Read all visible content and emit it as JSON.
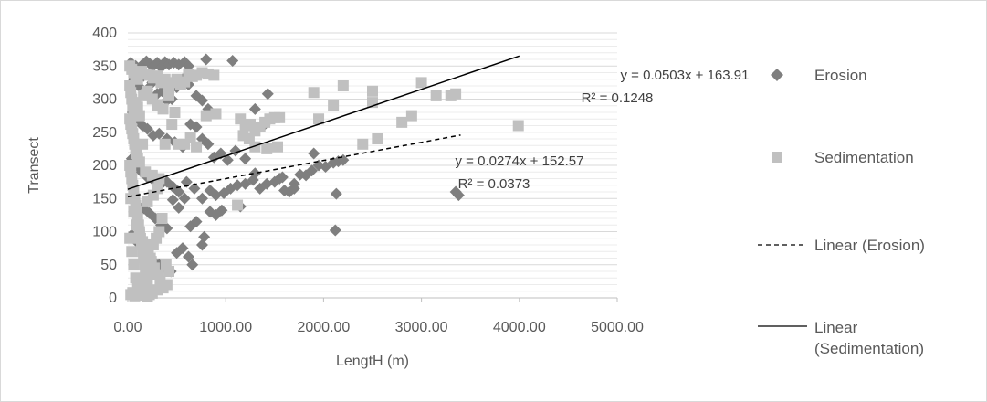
{
  "chart_data": {
    "type": "scatter",
    "title": "",
    "xlabel": "LengtH (m)",
    "ylabel": "Transect",
    "xlim": [
      0,
      5000
    ],
    "ylim": [
      0,
      400
    ],
    "x_ticks": [
      "0.00",
      "1000.00",
      "2000.00",
      "3000.00",
      "4000.00",
      "5000.00"
    ],
    "y_ticks": [
      "0",
      "50",
      "100",
      "150",
      "200",
      "250",
      "300",
      "350",
      "400"
    ],
    "grid": "horizontal",
    "legend_position": "right",
    "series": [
      {
        "name": "Erosion",
        "marker": "diamond",
        "color": "#7f7f7f",
        "points": [
          [
            30,
            355
          ],
          [
            80,
            350
          ],
          [
            120,
            345
          ],
          [
            150,
            352
          ],
          [
            190,
            357
          ],
          [
            220,
            354
          ],
          [
            260,
            350
          ],
          [
            300,
            355
          ],
          [
            340,
            348
          ],
          [
            380,
            356
          ],
          [
            420,
            352
          ],
          [
            470,
            355
          ],
          [
            520,
            352
          ],
          [
            580,
            356
          ],
          [
            620,
            350
          ],
          [
            800,
            360
          ],
          [
            1070,
            358
          ],
          [
            60,
            330
          ],
          [
            110,
            320
          ],
          [
            160,
            335
          ],
          [
            200,
            315
          ],
          [
            250,
            325
          ],
          [
            300,
            308
          ],
          [
            350,
            312
          ],
          [
            400,
            298
          ],
          [
            450,
            300
          ],
          [
            500,
            318
          ],
          [
            560,
            330
          ],
          [
            620,
            322
          ],
          [
            700,
            305
          ],
          [
            760,
            298
          ],
          [
            820,
            285
          ],
          [
            1430,
            308
          ],
          [
            50,
            280
          ],
          [
            100,
            270
          ],
          [
            150,
            260
          ],
          [
            200,
            255
          ],
          [
            260,
            245
          ],
          [
            320,
            248
          ],
          [
            400,
            240
          ],
          [
            480,
            235
          ],
          [
            560,
            228
          ],
          [
            640,
            262
          ],
          [
            700,
            258
          ],
          [
            760,
            240
          ],
          [
            820,
            232
          ],
          [
            880,
            212
          ],
          [
            950,
            218
          ],
          [
            1020,
            208
          ],
          [
            1100,
            222
          ],
          [
            1200,
            210
          ],
          [
            1300,
            285
          ],
          [
            1400,
            262
          ],
          [
            40,
            210
          ],
          [
            90,
            200
          ],
          [
            140,
            190
          ],
          [
            200,
            182
          ],
          [
            260,
            178
          ],
          [
            330,
            170
          ],
          [
            400,
            175
          ],
          [
            460,
            168
          ],
          [
            520,
            160
          ],
          [
            600,
            175
          ],
          [
            680,
            165
          ],
          [
            760,
            150
          ],
          [
            840,
            162
          ],
          [
            900,
            155
          ],
          [
            980,
            158
          ],
          [
            1050,
            165
          ],
          [
            1120,
            170
          ],
          [
            1200,
            172
          ],
          [
            1280,
            178
          ],
          [
            1350,
            165
          ],
          [
            1420,
            172
          ],
          [
            1500,
            175
          ],
          [
            1580,
            182
          ],
          [
            1650,
            160
          ],
          [
            1700,
            172
          ],
          [
            1760,
            186
          ],
          [
            1820,
            185
          ],
          [
            1880,
            192
          ],
          [
            1950,
            200
          ],
          [
            2020,
            198
          ],
          [
            2100,
            204
          ],
          [
            2150,
            206
          ],
          [
            2200,
            208
          ],
          [
            1900,
            218
          ],
          [
            1550,
            180
          ],
          [
            1600,
            162
          ],
          [
            50,
            150
          ],
          [
            100,
            140
          ],
          [
            160,
            135
          ],
          [
            220,
            128
          ],
          [
            280,
            120
          ],
          [
            340,
            110
          ],
          [
            400,
            105
          ],
          [
            460,
            148
          ],
          [
            520,
            136
          ],
          [
            580,
            150
          ],
          [
            640,
            108
          ],
          [
            700,
            115
          ],
          [
            780,
            92
          ],
          [
            840,
            130
          ],
          [
            900,
            125
          ],
          [
            960,
            132
          ],
          [
            1150,
            138
          ],
          [
            1300,
            188
          ],
          [
            1700,
            165
          ],
          [
            2130,
            157
          ],
          [
            3350,
            160
          ],
          [
            3380,
            155
          ],
          [
            2120,
            102
          ],
          [
            40,
            95
          ],
          [
            90,
            85
          ],
          [
            140,
            75
          ],
          [
            200,
            65
          ],
          [
            260,
            55
          ],
          [
            320,
            50
          ],
          [
            380,
            45
          ],
          [
            440,
            40
          ],
          [
            500,
            68
          ],
          [
            560,
            75
          ],
          [
            620,
            62
          ],
          [
            660,
            50
          ],
          [
            760,
            80
          ]
        ]
      },
      {
        "name": "Sedimentation",
        "marker": "square",
        "color": "#c0c0c0",
        "points": [
          [
            20,
            350
          ],
          [
            40,
            345
          ],
          [
            60,
            340
          ],
          [
            80,
            335
          ],
          [
            100,
            330
          ],
          [
            140,
            342
          ],
          [
            180,
            338
          ],
          [
            220,
            336
          ],
          [
            260,
            332
          ],
          [
            300,
            335
          ],
          [
            340,
            325
          ],
          [
            380,
            330
          ],
          [
            420,
            320
          ],
          [
            460,
            325
          ],
          [
            500,
            330
          ],
          [
            540,
            322
          ],
          [
            580,
            326
          ],
          [
            620,
            338
          ],
          [
            660,
            334
          ],
          [
            700,
            336
          ],
          [
            760,
            340
          ],
          [
            820,
            338
          ],
          [
            880,
            336
          ],
          [
            20,
            320
          ],
          [
            30,
            310
          ],
          [
            40,
            300
          ],
          [
            50,
            290
          ],
          [
            60,
            280
          ],
          [
            80,
            295
          ],
          [
            100,
            288
          ],
          [
            120,
            275
          ],
          [
            160,
            305
          ],
          [
            200,
            312
          ],
          [
            250,
            300
          ],
          [
            300,
            290
          ],
          [
            360,
            285
          ],
          [
            420,
            305
          ],
          [
            480,
            280
          ],
          [
            20,
            270
          ],
          [
            30,
            262
          ],
          [
            40,
            255
          ],
          [
            50,
            248
          ],
          [
            60,
            240
          ],
          [
            70,
            232
          ],
          [
            80,
            225
          ],
          [
            90,
            218
          ],
          [
            100,
            210
          ],
          [
            120,
            205
          ],
          [
            150,
            232
          ],
          [
            180,
            190
          ],
          [
            250,
            185
          ],
          [
            320,
            180
          ],
          [
            380,
            232
          ],
          [
            450,
            262
          ],
          [
            520,
            232
          ],
          [
            580,
            232
          ],
          [
            640,
            242
          ],
          [
            700,
            228
          ],
          [
            800,
            275
          ],
          [
            900,
            278
          ],
          [
            1150,
            270
          ],
          [
            1200,
            260
          ],
          [
            1250,
            262
          ],
          [
            1300,
            252
          ],
          [
            1350,
            258
          ],
          [
            1400,
            265
          ],
          [
            1450,
            270
          ],
          [
            1500,
            272
          ],
          [
            1550,
            272
          ],
          [
            1180,
            245
          ],
          [
            1240,
            240
          ],
          [
            1300,
            228
          ],
          [
            1420,
            225
          ],
          [
            1530,
            228
          ],
          [
            1900,
            310
          ],
          [
            1950,
            270
          ],
          [
            2100,
            290
          ],
          [
            2200,
            320
          ],
          [
            2400,
            232
          ],
          [
            2500,
            295
          ],
          [
            2500,
            312
          ],
          [
            2550,
            240
          ],
          [
            2800,
            265
          ],
          [
            2900,
            275
          ],
          [
            3000,
            325
          ],
          [
            3150,
            305
          ],
          [
            3300,
            305
          ],
          [
            3350,
            308
          ],
          [
            3990,
            260
          ],
          [
            20,
            200
          ],
          [
            30,
            190
          ],
          [
            40,
            180
          ],
          [
            50,
            170
          ],
          [
            60,
            160
          ],
          [
            70,
            150
          ],
          [
            80,
            140
          ],
          [
            90,
            130
          ],
          [
            100,
            120
          ],
          [
            110,
            110
          ],
          [
            120,
            100
          ],
          [
            130,
            90
          ],
          [
            140,
            80
          ],
          [
            150,
            70
          ],
          [
            160,
            60
          ],
          [
            170,
            50
          ],
          [
            180,
            40
          ],
          [
            190,
            30
          ],
          [
            200,
            20
          ],
          [
            210,
            10
          ],
          [
            220,
            5
          ],
          [
            30,
            150
          ],
          [
            60,
            130
          ],
          [
            90,
            110
          ],
          [
            120,
            95
          ],
          [
            150,
            85
          ],
          [
            180,
            75
          ],
          [
            210,
            65
          ],
          [
            240,
            55
          ],
          [
            270,
            45
          ],
          [
            300,
            35
          ],
          [
            330,
            25
          ],
          [
            360,
            15
          ],
          [
            390,
            50
          ],
          [
            420,
            40
          ],
          [
            20,
            90
          ],
          [
            40,
            70
          ],
          [
            60,
            50
          ],
          [
            80,
            30
          ],
          [
            100,
            15
          ],
          [
            120,
            5
          ],
          [
            140,
            10
          ],
          [
            160,
            20
          ],
          [
            180,
            35
          ],
          [
            200,
            45
          ],
          [
            230,
            60
          ],
          [
            260,
            80
          ],
          [
            290,
            90
          ],
          [
            320,
            100
          ],
          [
            350,
            120
          ],
          [
            30,
            5
          ],
          [
            50,
            8
          ],
          [
            70,
            3
          ],
          [
            100,
            6
          ],
          [
            150,
            4
          ],
          [
            200,
            2
          ],
          [
            250,
            7
          ],
          [
            300,
            12
          ],
          [
            400,
            20
          ],
          [
            200,
            145
          ],
          [
            260,
            155
          ],
          [
            300,
            165
          ],
          [
            1120,
            140
          ]
        ]
      }
    ],
    "trendlines": [
      {
        "name": "Linear (Erosion)",
        "series": "Erosion",
        "style": "dashed",
        "slope": 0.0274,
        "intercept": 152.57,
        "x_range": [
          0,
          3400
        ],
        "equation": "y = 0.0274x + 152.57",
        "r2": "R² = 0.0373"
      },
      {
        "name": "Linear (Sedimentation)",
        "series": "Sedimentation",
        "style": "solid",
        "slope": 0.0503,
        "intercept": 163.91,
        "x_range": [
          0,
          4000
        ],
        "equation": "y = 0.0503x + 163.91",
        "r2": "R² = 0.1248"
      }
    ],
    "legend": [
      {
        "label": "Erosion",
        "symbol": "diamond"
      },
      {
        "label": "Sedimentation",
        "symbol": "square"
      },
      {
        "label": "Linear (Erosion)",
        "symbol": "dashed-line"
      },
      {
        "label": "Linear (Sedimentation)",
        "symbol": "solid-line"
      }
    ]
  }
}
